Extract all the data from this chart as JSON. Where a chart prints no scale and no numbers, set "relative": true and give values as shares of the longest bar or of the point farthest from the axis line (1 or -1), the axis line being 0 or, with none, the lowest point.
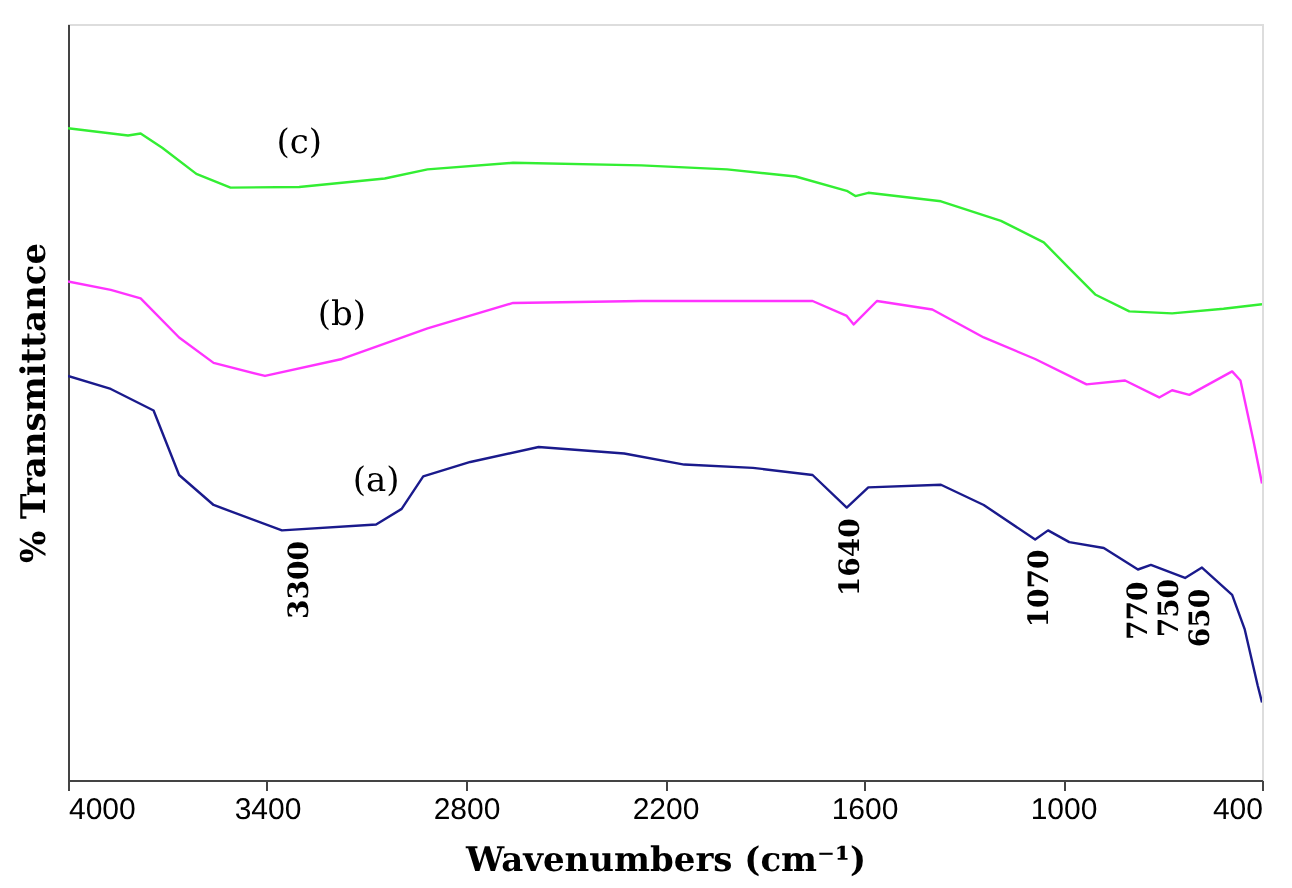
{
  "chart_data": {
    "type": "line",
    "relative": true,
    "xlabel": "Wavenumbers (cm⁻¹)",
    "ylabel": "% Transmittance",
    "xlim": [
      4000,
      400
    ],
    "xticks": [
      4000,
      3400,
      2800,
      2200,
      1600,
      1000,
      400
    ],
    "marker": "none",
    "line_style": "solid",
    "series": [
      {
        "name": "(a)",
        "color": "#1a1a8c",
        "x": [
          4000,
          3871,
          3742,
          3665,
          3561,
          3355,
          3071,
          2994,
          2929,
          2787,
          2581,
          2323,
          2142,
          1935,
          1755,
          1652,
          1587,
          1368,
          1239,
          1084,
          1045,
          981,
          877,
          774,
          735,
          632,
          581,
          490,
          452,
          413,
          400
        ],
        "values": [
          0.62,
          0.6,
          0.567,
          0.468,
          0.422,
          0.383,
          0.392,
          0.416,
          0.466,
          0.488,
          0.511,
          0.501,
          0.484,
          0.479,
          0.468,
          0.418,
          0.449,
          0.453,
          0.422,
          0.369,
          0.383,
          0.365,
          0.356,
          0.323,
          0.33,
          0.31,
          0.326,
          0.284,
          0.231,
          0.145,
          0.119
        ]
      },
      {
        "name": "(b)",
        "color": "#ff33ff",
        "x": [
          4000,
          3871,
          3781,
          3665,
          3561,
          3406,
          3174,
          2916,
          2658,
          2271,
          1755,
          1652,
          1631,
          1561,
          1394,
          1239,
          1084,
          929,
          813,
          710,
          671,
          619,
          490,
          465,
          426,
          400
        ],
        "values": [
          0.765,
          0.752,
          0.739,
          0.679,
          0.64,
          0.62,
          0.646,
          0.693,
          0.732,
          0.735,
          0.735,
          0.712,
          0.699,
          0.735,
          0.722,
          0.679,
          0.646,
          0.607,
          0.613,
          0.587,
          0.598,
          0.591,
          0.627,
          0.613,
          0.521,
          0.455
        ]
      },
      {
        "name": "(c)",
        "color": "#33ee33",
        "x": [
          4000,
          3819,
          3781,
          3716,
          3613,
          3510,
          3303,
          3045,
          2916,
          2658,
          2271,
          2013,
          1806,
          1652,
          1626,
          1587,
          1368,
          1187,
          1058,
          981,
          903,
          800,
          671,
          516,
          400
        ],
        "values": [
          1.0,
          0.989,
          0.992,
          0.97,
          0.93,
          0.909,
          0.91,
          0.923,
          0.937,
          0.947,
          0.943,
          0.937,
          0.926,
          0.904,
          0.896,
          0.901,
          0.888,
          0.858,
          0.825,
          0.785,
          0.745,
          0.719,
          0.716,
          0.723,
          0.73
        ]
      }
    ],
    "annotations": [
      {
        "text": "3300",
        "x": 3300,
        "y": 0.385
      },
      {
        "text": "1640",
        "x": 1640,
        "y": 0.42
      },
      {
        "text": "1070",
        "x": 1070,
        "y": 0.372
      },
      {
        "text": "770",
        "x": 770,
        "y": 0.323
      },
      {
        "text": "750",
        "x": 750,
        "y": 0.327
      },
      {
        "text": "650",
        "x": 650,
        "y": 0.312
      }
    ]
  }
}
